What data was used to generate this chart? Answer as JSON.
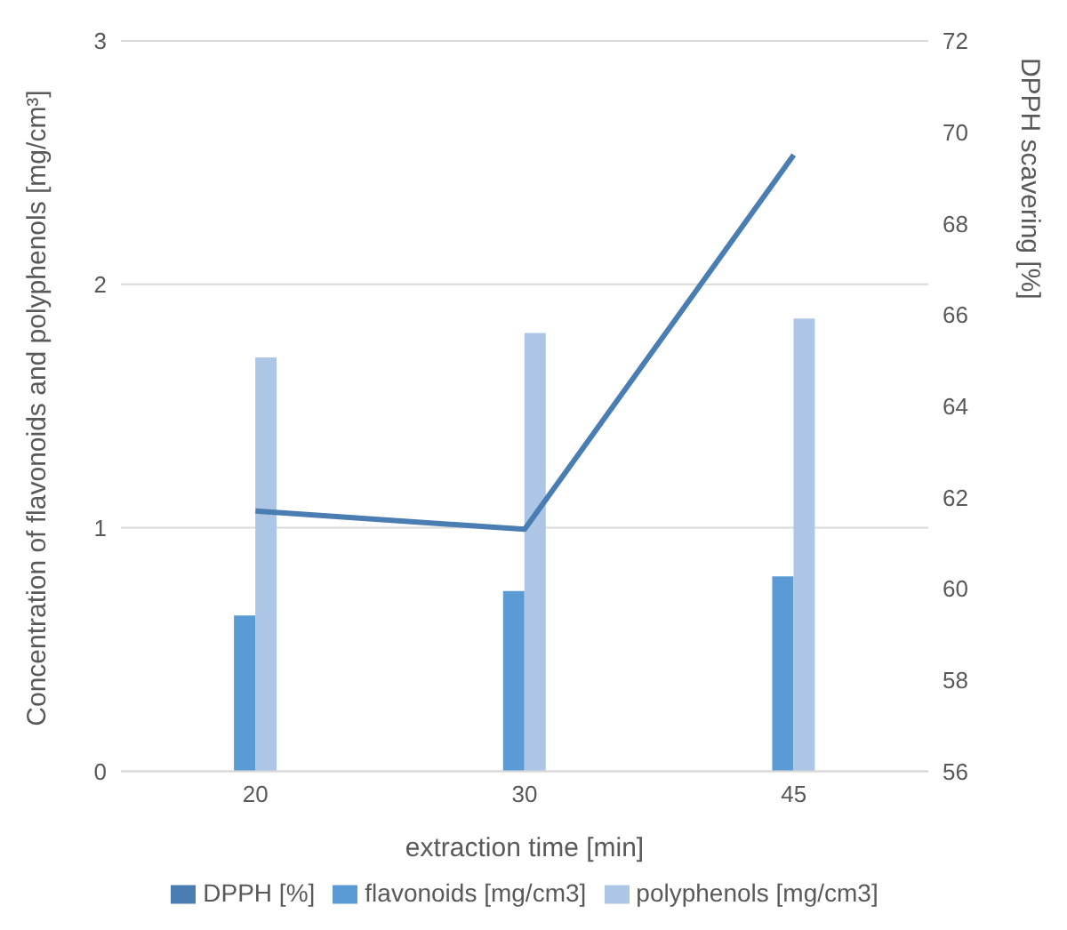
{
  "chart_data": {
    "type": "bar",
    "categories": [
      "20",
      "30",
      "45"
    ],
    "xlabel": "extraction time [min]",
    "ylabel": "Concentration of flavonoids and polyphenols [mg/cm³]",
    "y2label": "DPPH scavering [%]",
    "series": [
      {
        "name": "flavonoids [mg/cm3]",
        "color": "#5b9bd5",
        "values": [
          0.64,
          0.74,
          0.8
        ]
      },
      {
        "name": "polyphenols [mg/cm3]",
        "color": "#adc6e5",
        "values": [
          1.7,
          1.8,
          1.86
        ]
      },
      {
        "name": "DPPH [%]",
        "type": "line",
        "axis": "y2",
        "color": "#4a7eb2",
        "values": [
          61.7,
          61.3,
          69.5
        ]
      }
    ],
    "ylim": [
      0,
      3
    ],
    "yticks": [
      0,
      1,
      2,
      3
    ],
    "y2lim": [
      56,
      72
    ],
    "y2ticks": [
      56,
      58,
      60,
      62,
      64,
      66,
      68,
      70,
      72
    ],
    "grid": "y",
    "legend": "bottom",
    "marker": "none",
    "line_style": "solid"
  }
}
